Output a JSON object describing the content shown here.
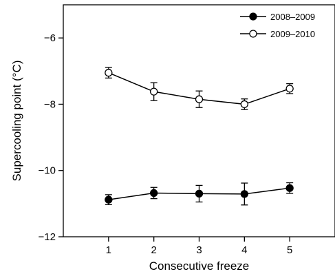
{
  "chart_data": {
    "type": "line",
    "xlabel": "Consecutive freeze",
    "ylabel": "Supercooling point (°C)",
    "xlim": [
      0,
      6
    ],
    "ylim": [
      -12,
      -5
    ],
    "x": [
      1,
      2,
      3,
      4,
      5
    ],
    "xticks": [
      "1",
      "2",
      "3",
      "4",
      "5"
    ],
    "yticks": [
      "−6",
      "−8",
      "−10",
      "−12"
    ],
    "ytick_values": [
      -6,
      -8,
      -10,
      -12
    ],
    "grid": false,
    "legend_position": "top-right",
    "series": [
      {
        "name": "2008–2009",
        "marker": "filled-circle",
        "color": "#000000",
        "values": [
          -10.88,
          -10.68,
          -10.7,
          -10.71,
          -10.53
        ],
        "error": [
          0.15,
          0.17,
          0.25,
          0.33,
          0.16
        ]
      },
      {
        "name": "2009–2010",
        "marker": "open-circle",
        "color": "#000000",
        "values": [
          -7.05,
          -7.62,
          -7.85,
          -8.0,
          -7.53
        ],
        "error": [
          0.16,
          0.27,
          0.25,
          0.16,
          0.15
        ]
      }
    ]
  }
}
